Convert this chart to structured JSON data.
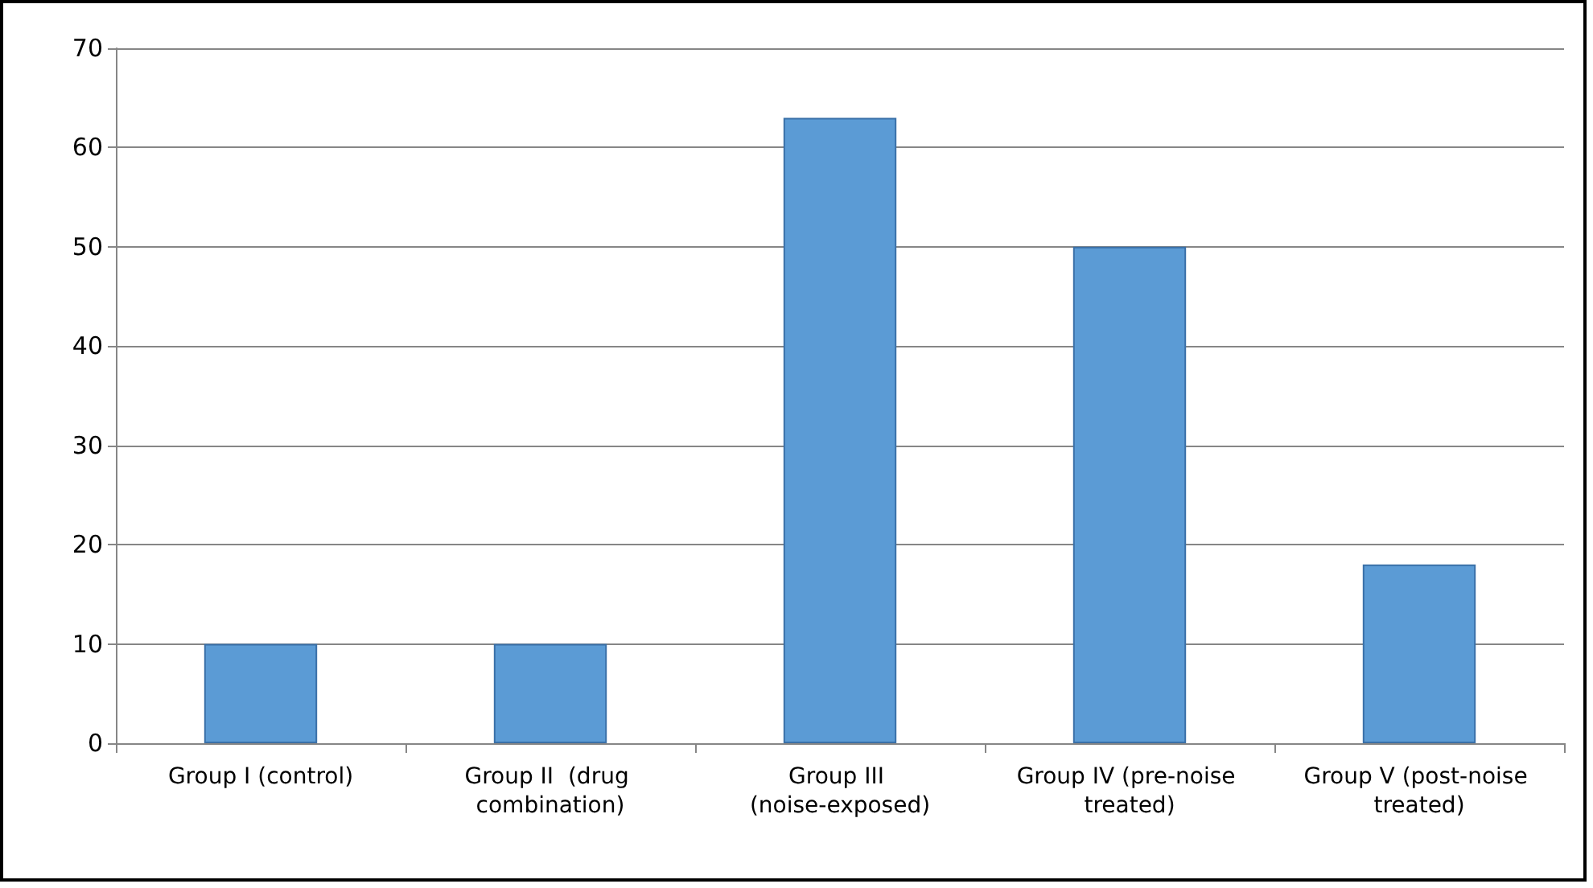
{
  "chart_data": {
    "type": "bar",
    "categories": [
      "Group I (control)",
      "Group II  (drug combination)",
      "Group III (noise-exposed)",
      "Group IV (pre-noise treated)",
      "Group V (post-noise treated)"
    ],
    "values": [
      10,
      10,
      63,
      50,
      18
    ],
    "color": "#5b9bd5",
    "ylim": [
      0,
      70
    ],
    "yticks": [
      0,
      10,
      20,
      30,
      40,
      50,
      60,
      70
    ],
    "grid": "y"
  }
}
